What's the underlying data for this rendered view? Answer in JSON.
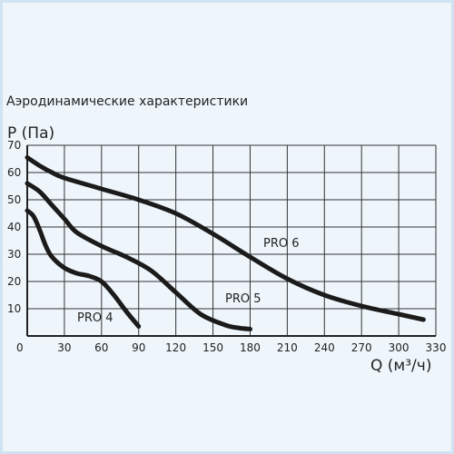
{
  "chart_data": {
    "type": "line",
    "title": "Аэродинамические характеристики",
    "ylabel": "P (Па)",
    "xlabel": "Q (м³/ч)",
    "xlim": [
      0,
      330
    ],
    "ylim": [
      0,
      70
    ],
    "x_ticks": [
      0,
      30,
      60,
      90,
      120,
      150,
      180,
      210,
      240,
      270,
      300,
      330
    ],
    "y_ticks": [
      10,
      20,
      30,
      40,
      50,
      60,
      70
    ],
    "grid": true,
    "series": [
      {
        "name": "PRO 4",
        "x": [
          0,
          5,
          10,
          15,
          20,
          30,
          40,
          50,
          60,
          70,
          80,
          90
        ],
        "y": [
          46,
          44,
          39,
          33,
          29,
          25,
          23,
          22,
          20,
          15,
          9,
          3.5
        ]
      },
      {
        "name": "PRO 5",
        "x": [
          0,
          10,
          20,
          30,
          40,
          60,
          80,
          100,
          120,
          140,
          160,
          170,
          180
        ],
        "y": [
          56,
          53,
          48,
          43,
          38,
          33,
          29,
          24,
          16,
          8,
          4,
          3,
          2.5
        ]
      },
      {
        "name": "PRO 6",
        "x": [
          0,
          10,
          20,
          30,
          60,
          90,
          120,
          150,
          180,
          210,
          240,
          270,
          300,
          320
        ],
        "y": [
          65.5,
          62.5,
          60,
          58,
          54,
          50,
          45,
          37.5,
          29,
          21,
          15,
          11,
          8,
          6
        ]
      }
    ]
  }
}
